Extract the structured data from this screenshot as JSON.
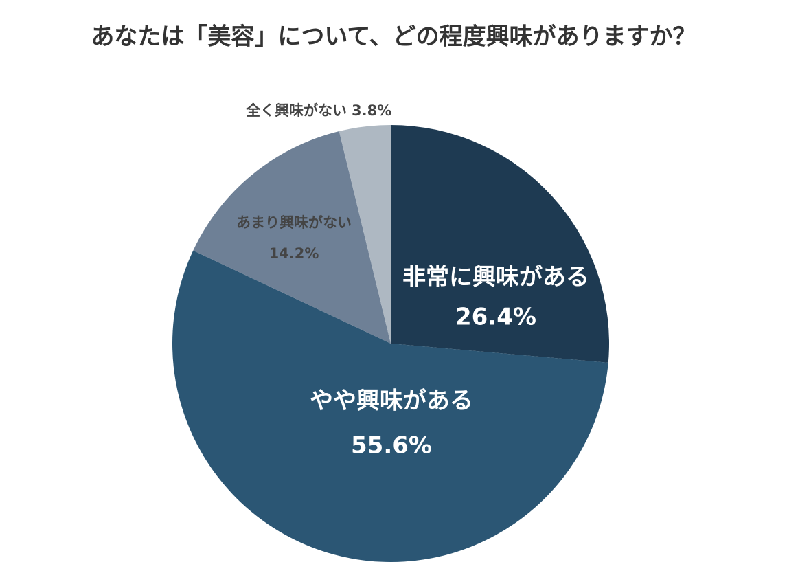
{
  "chart_data": {
    "type": "pie",
    "title": "あなたは「美容」について、どの程度興味がありますか？",
    "categories": [
      "非常に興味がある",
      "やや興味がある",
      "あまり興味がない",
      "全く興味がない"
    ],
    "values": [
      26.4,
      55.6,
      14.2,
      3.8
    ],
    "value_labels": [
      "26.4%",
      "55.6%",
      "14.2%",
      "3.8%"
    ],
    "colors": [
      "#1e3a52",
      "#2b5674",
      "#6e8096",
      "#aeb8c2"
    ]
  }
}
